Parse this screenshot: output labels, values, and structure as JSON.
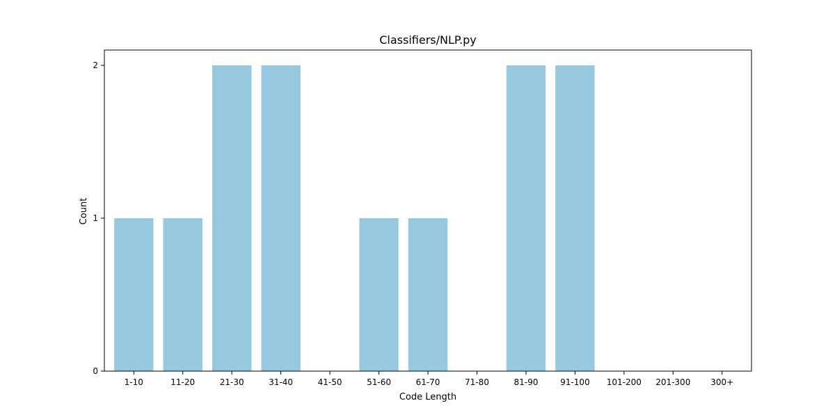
{
  "chart_data": {
    "type": "bar",
    "title": "Classifiers/NLP.py",
    "xlabel": "Code Length",
    "ylabel": "Count",
    "categories": [
      "1-10",
      "11-20",
      "21-30",
      "31-40",
      "41-50",
      "51-60",
      "61-70",
      "71-80",
      "81-90",
      "91-100",
      "101-200",
      "201-300",
      "300+"
    ],
    "values": [
      1,
      1,
      2,
      2,
      0,
      1,
      1,
      0,
      2,
      2,
      0,
      0,
      0
    ],
    "ylim": [
      0,
      2.1
    ],
    "yticks": [
      0,
      1,
      2
    ],
    "grid": false,
    "legend": "none",
    "bar_color": "#96c9df"
  }
}
